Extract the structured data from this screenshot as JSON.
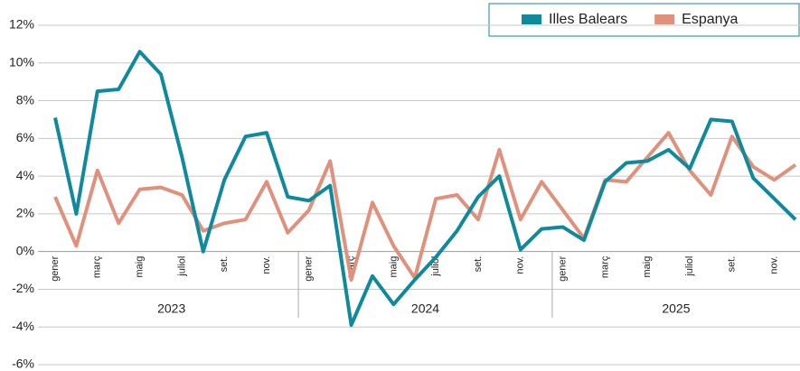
{
  "chart_data": {
    "type": "line",
    "categories": [
      "gener",
      null,
      "març",
      null,
      "maig",
      null,
      "juliol",
      null,
      "set.",
      null,
      "nov.",
      null,
      "gener",
      null,
      "març",
      null,
      "maig",
      null,
      "juliol",
      null,
      "set.",
      null,
      "nov.",
      null,
      "gener",
      null,
      "març",
      null,
      "maig",
      null,
      "juliol",
      null,
      "set.",
      null,
      "nov.",
      null
    ],
    "x_groups": [
      "2023",
      "2024",
      "2025"
    ],
    "series": [
      {
        "name": "Illes Balears",
        "color": "#0f8a9d",
        "values": [
          7.1,
          2.0,
          8.5,
          8.6,
          10.6,
          9.4,
          5.0,
          0.0,
          3.8,
          6.1,
          6.3,
          2.9,
          2.7,
          3.5,
          -3.9,
          -1.3,
          -2.8,
          -1.5,
          -0.3,
          1.1,
          2.9,
          4.0,
          0.1,
          1.2,
          1.3,
          0.6,
          3.7,
          4.7,
          4.8,
          5.4,
          4.4,
          7.0,
          6.9,
          3.9,
          2.8,
          1.7
        ]
      },
      {
        "name": "Espanya",
        "color": "#e0917c",
        "values": [
          2.9,
          0.3,
          4.3,
          1.5,
          3.3,
          3.4,
          3.0,
          1.1,
          1.5,
          1.7,
          3.7,
          1.0,
          2.2,
          4.8,
          -1.5,
          2.6,
          0.3,
          -1.4,
          2.8,
          3.0,
          1.7,
          5.4,
          1.7,
          3.7,
          2.2,
          0.7,
          3.8,
          3.7,
          5.0,
          6.3,
          4.3,
          3.0,
          6.1,
          4.5,
          3.8,
          4.6
        ]
      }
    ],
    "ylim": [
      -6,
      12
    ],
    "yticks": [
      {
        "value": -6,
        "label": "-6%"
      },
      {
        "value": -4,
        "label": "-4%"
      },
      {
        "value": -2,
        "label": "-2%"
      },
      {
        "value": 0,
        "label": "0%"
      },
      {
        "value": 2,
        "label": "2%"
      },
      {
        "value": 4,
        "label": "4%"
      },
      {
        "value": 6,
        "label": "6%"
      },
      {
        "value": 8,
        "label": "8%"
      },
      {
        "value": 10,
        "label": "10%"
      },
      {
        "value": 12,
        "label": "12%"
      }
    ],
    "grid": true,
    "legend": "top-right"
  }
}
